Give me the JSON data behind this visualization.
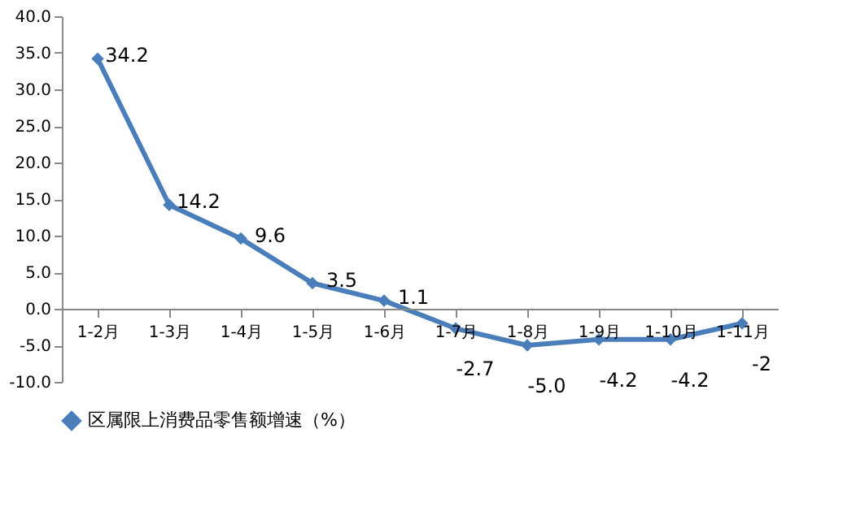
{
  "chart_data": {
    "type": "line",
    "categories": [
      "1-2月",
      "1-3月",
      "1-4月",
      "1-5月",
      "1-6月",
      "1-7月",
      "1-8月",
      "1-9月",
      "1-10月",
      "1-11月"
    ],
    "series": [
      {
        "name": "区属限上消费品零售额增速（%）",
        "color": "#4a7ebb",
        "values": [
          34.2,
          14.2,
          9.6,
          3.5,
          1.1,
          -2.7,
          -5.0,
          -4.2,
          -4.2,
          -2
        ],
        "value_labels": [
          "34.2",
          "14.2",
          "9.6",
          "3.5",
          "1.1",
          "-2.7",
          "-5.0",
          "-4.2",
          "-4.2",
          "-2"
        ]
      }
    ],
    "ylim": [
      -10,
      40
    ],
    "yticks": [
      {
        "value": -10,
        "label": "-10.0"
      },
      {
        "value": -5,
        "label": "-5.0"
      },
      {
        "value": 0,
        "label": "0.0"
      },
      {
        "value": 5,
        "label": "5.0"
      },
      {
        "value": 10,
        "label": "10.0"
      },
      {
        "value": 15,
        "label": "15.0"
      },
      {
        "value": 20,
        "label": "20.0"
      },
      {
        "value": 25,
        "label": "25.0"
      },
      {
        "value": 30,
        "label": "30.0"
      },
      {
        "value": 35,
        "label": "35.0"
      },
      {
        "value": 40,
        "label": "40.0"
      }
    ],
    "grid": false,
    "legend": "bottom",
    "marker": "diamond",
    "line_style": "solid"
  }
}
